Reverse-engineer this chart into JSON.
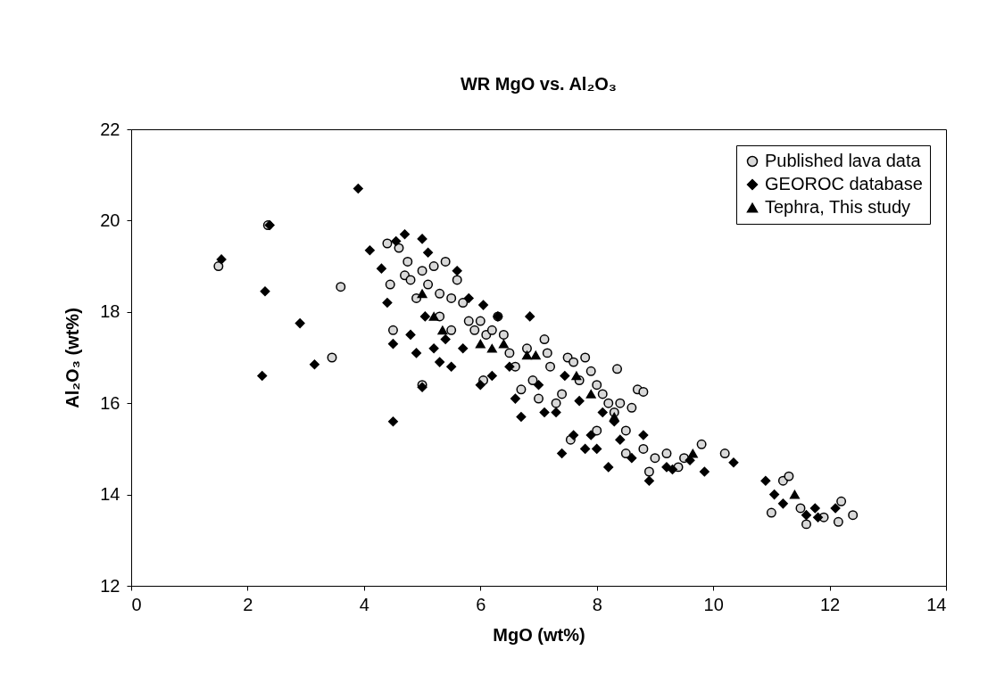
{
  "chart_data": {
    "type": "scatter",
    "title": "WR MgO vs. Al₂O₃",
    "xlabel": "MgO (wt%)",
    "ylabel": "Al₂O₃ (wt%)",
    "xlim": [
      0,
      14
    ],
    "xticks": [
      0,
      2,
      4,
      6,
      8,
      10,
      12,
      14
    ],
    "ylim": [
      12,
      22
    ],
    "yticks": [
      12,
      14,
      16,
      18,
      20,
      22
    ],
    "grid": false,
    "legend": "top right",
    "series": [
      {
        "name": "Published lava data",
        "color": "#d9d9d9",
        "marker": "circle",
        "x": [
          1.5,
          2.35,
          3.45,
          3.6,
          4.4,
          4.45,
          4.5,
          4.6,
          4.7,
          4.75,
          4.8,
          4.9,
          5.0,
          5.0,
          5.1,
          5.2,
          5.3,
          5.4,
          5.5,
          5.6,
          5.7,
          5.8,
          5.9,
          6.0,
          6.1,
          6.2,
          6.3,
          6.4,
          6.5,
          6.6,
          6.7,
          6.8,
          6.9,
          7.0,
          7.1,
          7.15,
          7.2,
          7.3,
          7.4,
          7.5,
          7.55,
          7.6,
          7.7,
          7.8,
          7.9,
          8.0,
          8.1,
          8.2,
          8.3,
          8.35,
          8.4,
          8.5,
          8.6,
          8.7,
          8.8,
          8.8,
          8.9,
          9.0,
          9.2,
          9.4,
          9.5,
          9.8,
          10.2,
          11.0,
          11.2,
          11.3,
          11.5,
          11.6,
          11.9,
          12.15,
          12.2,
          12.4,
          5.5,
          5.3,
          6.05,
          8.0,
          8.5
        ],
        "values": [
          19.0,
          19.9,
          17.0,
          18.55,
          19.5,
          18.6,
          17.6,
          19.4,
          18.8,
          19.1,
          18.7,
          18.3,
          18.9,
          16.4,
          18.6,
          19.0,
          18.4,
          19.1,
          18.3,
          18.7,
          18.2,
          17.8,
          17.6,
          17.8,
          17.5,
          17.6,
          17.9,
          17.5,
          17.1,
          16.8,
          16.3,
          17.2,
          16.5,
          16.1,
          17.4,
          17.1,
          16.8,
          16.0,
          16.2,
          17.0,
          15.2,
          16.9,
          16.5,
          17.0,
          16.7,
          16.4,
          16.2,
          16.0,
          15.8,
          16.75,
          16.0,
          15.4,
          15.9,
          16.3,
          16.25,
          15.0,
          14.5,
          14.8,
          14.9,
          14.6,
          14.8,
          15.1,
          14.9,
          13.6,
          14.3,
          14.4,
          13.7,
          13.35,
          13.5,
          13.4,
          13.85,
          13.55,
          17.6,
          17.9,
          16.5,
          15.4,
          14.9
        ]
      },
      {
        "name": "GEOROC database",
        "color": "#000000",
        "marker": "diamond",
        "x": [
          1.55,
          2.25,
          2.3,
          2.38,
          2.9,
          3.15,
          3.9,
          4.1,
          4.3,
          4.4,
          4.5,
          4.5,
          4.55,
          4.7,
          4.8,
          4.9,
          5.0,
          5.0,
          5.05,
          5.1,
          5.2,
          5.3,
          5.4,
          5.5,
          5.6,
          5.7,
          5.8,
          6.0,
          6.05,
          6.2,
          6.3,
          6.5,
          6.6,
          6.7,
          6.85,
          7.0,
          7.1,
          7.3,
          7.4,
          7.45,
          7.6,
          7.7,
          7.8,
          7.9,
          8.0,
          8.1,
          8.2,
          8.3,
          8.4,
          8.6,
          8.8,
          8.9,
          9.2,
          9.3,
          9.6,
          9.85,
          10.35,
          10.9,
          11.05,
          11.2,
          11.6,
          11.75,
          11.8,
          12.1
        ],
        "values": [
          19.15,
          16.6,
          18.45,
          19.9,
          17.75,
          16.85,
          20.7,
          19.35,
          18.95,
          18.2,
          17.3,
          15.6,
          19.55,
          19.7,
          17.5,
          17.1,
          19.6,
          16.35,
          17.9,
          19.3,
          17.2,
          16.9,
          17.4,
          16.8,
          18.9,
          17.2,
          18.3,
          16.4,
          18.15,
          16.6,
          17.9,
          16.8,
          16.1,
          15.7,
          17.9,
          16.4,
          15.8,
          15.8,
          14.9,
          16.6,
          15.3,
          16.05,
          15.0,
          15.3,
          15.0,
          15.8,
          14.6,
          15.6,
          15.2,
          14.8,
          15.3,
          14.3,
          14.6,
          14.55,
          14.75,
          14.5,
          14.7,
          14.3,
          14.0,
          13.8,
          13.55,
          13.7,
          13.5,
          13.7
        ]
      },
      {
        "name": "Tephra, This study",
        "color": "#000000",
        "marker": "triangle",
        "x": [
          5.0,
          5.2,
          5.35,
          6.0,
          6.2,
          6.4,
          6.8,
          6.95,
          7.65,
          7.9,
          8.3,
          9.65,
          11.4
        ],
        "values": [
          18.4,
          17.9,
          17.6,
          17.3,
          17.2,
          17.3,
          17.05,
          17.05,
          16.6,
          16.2,
          15.7,
          14.9,
          14.0
        ]
      }
    ]
  }
}
